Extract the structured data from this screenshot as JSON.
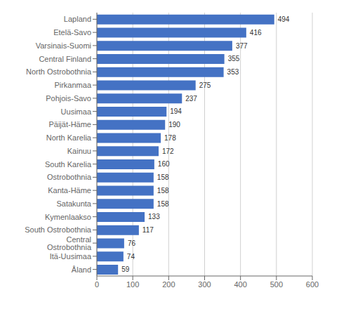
{
  "chart_data": {
    "type": "bar",
    "orientation": "horizontal",
    "categories": [
      "Lapland",
      "Etelä-Savo",
      "Varsinais-Suomi",
      "Central Finland",
      "North Ostrobothnia",
      "Pirkanmaa",
      "Pohjois-Savo",
      "Uusimaa",
      "Päijät-Häme",
      "North Karelia",
      "Kainuu",
      "South Karelia",
      "Ostrobothnia",
      "Kanta-Häme",
      "Satakunta",
      "Kymenlaakso",
      "South Ostrobothnia",
      "Central Ostrobothnia",
      "Itä-Uusimaa",
      "Åland"
    ],
    "values": [
      494,
      416,
      377,
      355,
      353,
      275,
      237,
      194,
      190,
      178,
      172,
      160,
      158,
      158,
      158,
      133,
      117,
      76,
      74,
      59
    ],
    "color": "#4472C4",
    "xlim": [
      0,
      600
    ],
    "xticks": [
      0,
      100,
      200,
      300,
      400,
      500,
      600
    ],
    "grid": true,
    "data_labels": true
  }
}
